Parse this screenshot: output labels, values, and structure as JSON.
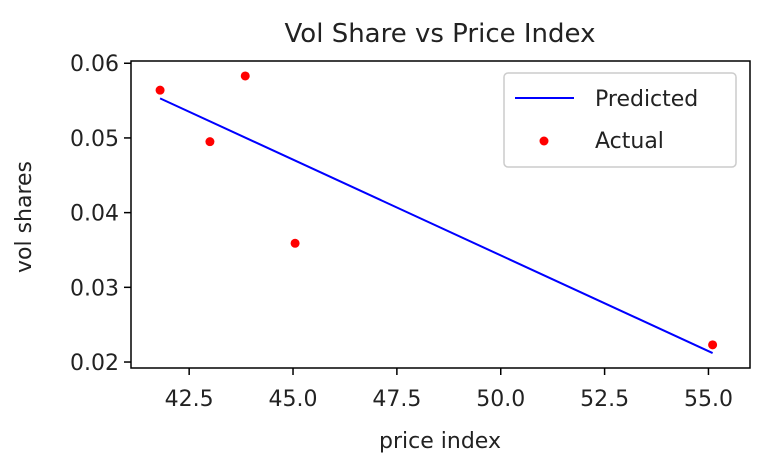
{
  "chart_data": {
    "type": "scatter",
    "title": "Vol Share vs Price Index",
    "xlabel": "price index",
    "ylabel": "vol shares",
    "xlim": [
      41.1,
      56.0
    ],
    "ylim": [
      0.0192,
      0.0603
    ],
    "xticks": [
      42.5,
      45.0,
      47.5,
      50.0,
      52.5,
      55.0
    ],
    "xtick_labels": [
      "42.5",
      "45.0",
      "47.5",
      "50.0",
      "52.5",
      "55.0"
    ],
    "yticks": [
      0.02,
      0.03,
      0.04,
      0.05,
      0.06
    ],
    "ytick_labels": [
      "0.02",
      "0.03",
      "0.04",
      "0.05",
      "0.06"
    ],
    "grid": false,
    "legend": "upper-right",
    "series": [
      {
        "name": "Predicted",
        "kind": "line",
        "color": "#0000ff",
        "x": [
          41.8,
          55.1
        ],
        "y": [
          0.0553,
          0.0212
        ]
      },
      {
        "name": "Actual",
        "kind": "scatter",
        "color": "#ff0000",
        "x": [
          41.8,
          43.0,
          43.85,
          45.05,
          55.1
        ],
        "y": [
          0.0564,
          0.0495,
          0.0583,
          0.0359,
          0.0223
        ]
      }
    ]
  }
}
